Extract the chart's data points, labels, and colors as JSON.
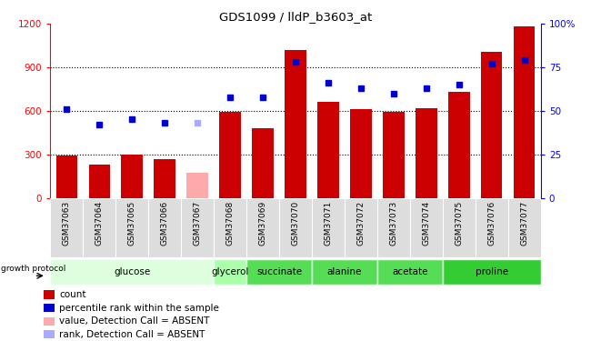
{
  "title": "GDS1099 / lldP_b3603_at",
  "samples": [
    "GSM37063",
    "GSM37064",
    "GSM37065",
    "GSM37066",
    "GSM37067",
    "GSM37068",
    "GSM37069",
    "GSM37070",
    "GSM37071",
    "GSM37072",
    "GSM37073",
    "GSM37074",
    "GSM37075",
    "GSM37076",
    "GSM37077"
  ],
  "bar_values": [
    290,
    230,
    295,
    265,
    175,
    590,
    480,
    1020,
    660,
    610,
    595,
    620,
    730,
    1010,
    1185
  ],
  "bar_colors": [
    "#cc0000",
    "#cc0000",
    "#cc0000",
    "#cc0000",
    "#ffaaaa",
    "#cc0000",
    "#cc0000",
    "#cc0000",
    "#cc0000",
    "#cc0000",
    "#cc0000",
    "#cc0000",
    "#cc0000",
    "#cc0000",
    "#cc0000"
  ],
  "dot_values": [
    51,
    42,
    45,
    43,
    43,
    58,
    58,
    78,
    66,
    63,
    60,
    63,
    65,
    77,
    79
  ],
  "dot_absent": [
    false,
    false,
    false,
    false,
    true,
    false,
    false,
    false,
    false,
    false,
    false,
    false,
    false,
    false,
    false
  ],
  "ylim_left": [
    0,
    1200
  ],
  "ylim_right": [
    0,
    100
  ],
  "yticks_left": [
    0,
    300,
    600,
    900,
    1200
  ],
  "yticks_right": [
    0,
    25,
    50,
    75,
    100
  ],
  "group_defs": [
    {
      "label": "glucose",
      "indices": [
        0,
        1,
        2,
        3,
        4
      ],
      "color": "#ddffdd"
    },
    {
      "label": "glycerol",
      "indices": [
        5
      ],
      "color": "#aaffaa"
    },
    {
      "label": "succinate",
      "indices": [
        6,
        7
      ],
      "color": "#55dd55"
    },
    {
      "label": "alanine",
      "indices": [
        8,
        9
      ],
      "color": "#55dd55"
    },
    {
      "label": "acetate",
      "indices": [
        10,
        11
      ],
      "color": "#55dd55"
    },
    {
      "label": "proline",
      "indices": [
        12,
        13,
        14
      ],
      "color": "#33cc33"
    }
  ],
  "bar_color_default": "#cc0000",
  "bar_color_absent": "#ffaaaa",
  "dot_color_default": "#0000cc",
  "dot_color_absent": "#aaaaff",
  "legend_entries": [
    {
      "label": "count",
      "color": "#cc0000"
    },
    {
      "label": "percentile rank within the sample",
      "color": "#0000cc"
    },
    {
      "label": "value, Detection Call = ABSENT",
      "color": "#ffaaaa"
    },
    {
      "label": "rank, Detection Call = ABSENT",
      "color": "#aaaaff"
    }
  ],
  "growth_protocol_label": "growth protocol"
}
